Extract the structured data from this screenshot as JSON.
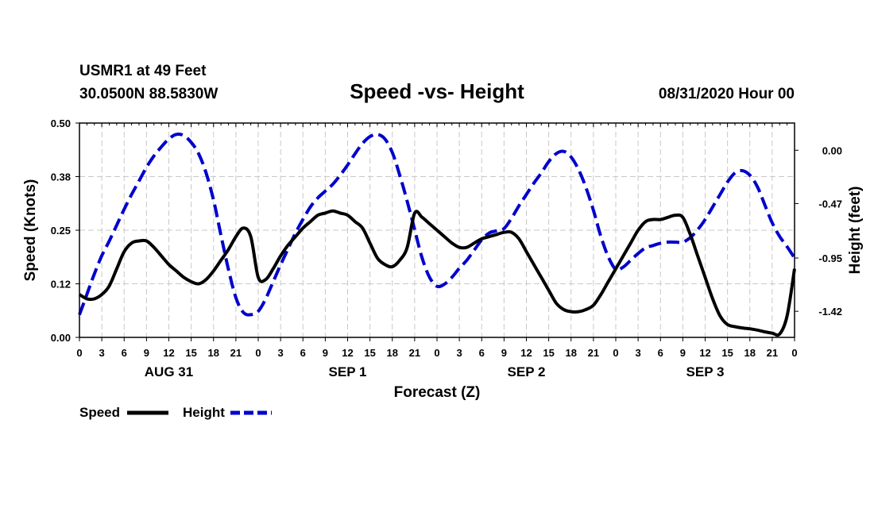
{
  "header": {
    "station": "USMR1 at 49 Feet",
    "coords": "30.0500N 88.5830W",
    "title": "Speed -vs- Height",
    "datetime": "08/31/2020 Hour 00"
  },
  "legend": {
    "speed_label": "Speed",
    "height_label": "Height"
  },
  "colors": {
    "speed": "#000000",
    "height": "#0000cc"
  },
  "chart_data": {
    "type": "line",
    "title": "Speed -vs- Height",
    "xlabel": "Forecast (Z)",
    "ylabel": "Speed (Knots)",
    "y2label": "Height (feet)",
    "xlim": [
      0,
      96
    ],
    "ylim": [
      0,
      0.5
    ],
    "y2lim": [
      -1.65,
      0.24
    ],
    "x_ticks": [
      0,
      3,
      6,
      9,
      12,
      15,
      18,
      21,
      24,
      27,
      30,
      33,
      36,
      39,
      42,
      45,
      48,
      51,
      54,
      57,
      60,
      63,
      66,
      69,
      72,
      75,
      78,
      81,
      84,
      87,
      90,
      93,
      96
    ],
    "x_tick_labels": [
      "0",
      "3",
      "6",
      "9",
      "12",
      "15",
      "18",
      "21",
      "0",
      "3",
      "6",
      "9",
      "12",
      "15",
      "18",
      "21",
      "0",
      "3",
      "6",
      "9",
      "12",
      "15",
      "18",
      "21",
      "0",
      "3",
      "6",
      "9",
      "12",
      "15",
      "18",
      "21",
      "0"
    ],
    "day_labels": [
      {
        "x": 12,
        "label": "AUG 31"
      },
      {
        "x": 36,
        "label": "SEP 1"
      },
      {
        "x": 60,
        "label": "SEP 2"
      },
      {
        "x": 84,
        "label": "SEP 3"
      }
    ],
    "y_ticks": [
      0.0,
      0.125,
      0.25,
      0.375,
      0.5
    ],
    "y_tick_labels": [
      "0.00",
      "0.12",
      "0.25",
      "0.38",
      "0.50"
    ],
    "y2_ticks": [
      0.0,
      -0.47,
      -0.95,
      -1.42
    ],
    "y2_tick_labels": [
      "0.00",
      "-0.47",
      "-0.95",
      "-1.42"
    ],
    "grid": true,
    "series": [
      {
        "name": "Speed",
        "axis": "left",
        "style": "solid",
        "x": [
          0,
          1,
          2,
          3,
          4,
          5,
          6,
          7,
          8,
          9,
          10,
          11,
          12,
          13,
          14,
          15,
          16,
          17,
          18,
          19,
          20,
          21,
          22,
          23,
          24,
          25,
          26,
          27,
          28,
          29,
          30,
          31,
          32,
          33,
          34,
          35,
          36,
          37,
          38,
          39,
          40,
          41,
          42,
          43,
          44,
          45,
          46,
          47,
          48,
          49,
          50,
          51,
          52,
          53,
          54,
          55,
          56,
          57,
          58,
          59,
          60,
          61,
          62,
          63,
          64,
          65,
          66,
          67,
          68,
          69,
          70,
          71,
          72,
          73,
          74,
          75,
          76,
          77,
          78,
          79,
          80,
          81,
          82,
          83,
          84,
          85,
          86,
          87,
          88,
          89,
          90,
          91,
          92,
          93,
          94,
          95,
          96
        ],
        "values": [
          0.1,
          0.09,
          0.09,
          0.1,
          0.12,
          0.16,
          0.2,
          0.22,
          0.225,
          0.225,
          0.21,
          0.19,
          0.17,
          0.155,
          0.14,
          0.13,
          0.125,
          0.135,
          0.155,
          0.18,
          0.205,
          0.235,
          0.255,
          0.235,
          0.14,
          0.135,
          0.16,
          0.19,
          0.215,
          0.235,
          0.255,
          0.27,
          0.285,
          0.29,
          0.295,
          0.29,
          0.285,
          0.27,
          0.255,
          0.22,
          0.185,
          0.17,
          0.165,
          0.18,
          0.21,
          0.29,
          0.28,
          0.265,
          0.25,
          0.235,
          0.22,
          0.21,
          0.21,
          0.22,
          0.23,
          0.235,
          0.24,
          0.245,
          0.245,
          0.23,
          0.2,
          0.17,
          0.14,
          0.11,
          0.08,
          0.065,
          0.06,
          0.06,
          0.065,
          0.075,
          0.1,
          0.13,
          0.16,
          0.19,
          0.22,
          0.25,
          0.27,
          0.275,
          0.275,
          0.28,
          0.285,
          0.28,
          0.24,
          0.19,
          0.14,
          0.09,
          0.05,
          0.03,
          0.025,
          0.022,
          0.02,
          0.017,
          0.013,
          0.01,
          0.008,
          0.05,
          0.16
        ]
      },
      {
        "name": "Height",
        "axis": "right",
        "style": "dashed",
        "x": [
          0,
          1,
          2,
          3,
          4,
          5,
          6,
          7,
          8,
          9,
          10,
          11,
          12,
          13,
          14,
          15,
          16,
          17,
          18,
          19,
          20,
          21,
          22,
          23,
          24,
          25,
          26,
          27,
          28,
          29,
          30,
          31,
          32,
          33,
          34,
          35,
          36,
          37,
          38,
          39,
          40,
          41,
          42,
          43,
          44,
          45,
          46,
          47,
          48,
          49,
          50,
          51,
          52,
          53,
          54,
          55,
          56,
          57,
          58,
          59,
          60,
          61,
          62,
          63,
          64,
          65,
          66,
          67,
          68,
          69,
          70,
          71,
          72,
          73,
          74,
          75,
          76,
          77,
          78,
          79,
          80,
          81,
          82,
          83,
          84,
          85,
          86,
          87,
          88,
          89,
          90,
          91,
          92,
          93,
          94,
          95,
          96
        ],
        "values": [
          -1.45,
          -1.27,
          -1.09,
          -0.93,
          -0.8,
          -0.66,
          -0.52,
          -0.39,
          -0.27,
          -0.15,
          -0.05,
          0.03,
          0.1,
          0.14,
          0.13,
          0.07,
          -0.03,
          -0.2,
          -0.44,
          -0.75,
          -1.05,
          -1.3,
          -1.43,
          -1.45,
          -1.42,
          -1.31,
          -1.16,
          -1.01,
          -0.87,
          -0.73,
          -0.61,
          -0.5,
          -0.42,
          -0.36,
          -0.3,
          -0.22,
          -0.13,
          -0.03,
          0.06,
          0.12,
          0.14,
          0.1,
          -0.02,
          -0.22,
          -0.45,
          -0.7,
          -0.95,
          -1.12,
          -1.2,
          -1.18,
          -1.12,
          -1.04,
          -0.97,
          -0.88,
          -0.79,
          -0.73,
          -0.71,
          -0.69,
          -0.6,
          -0.49,
          -0.39,
          -0.29,
          -0.2,
          -0.1,
          -0.03,
          -0.01,
          -0.06,
          -0.17,
          -0.33,
          -0.53,
          -0.76,
          -0.94,
          -1.05,
          -1.03,
          -0.97,
          -0.91,
          -0.86,
          -0.84,
          -0.82,
          -0.81,
          -0.81,
          -0.81,
          -0.77,
          -0.7,
          -0.61,
          -0.5,
          -0.39,
          -0.28,
          -0.2,
          -0.18,
          -0.22,
          -0.32,
          -0.48,
          -0.64,
          -0.76,
          -0.85,
          -0.95
        ]
      }
    ]
  }
}
